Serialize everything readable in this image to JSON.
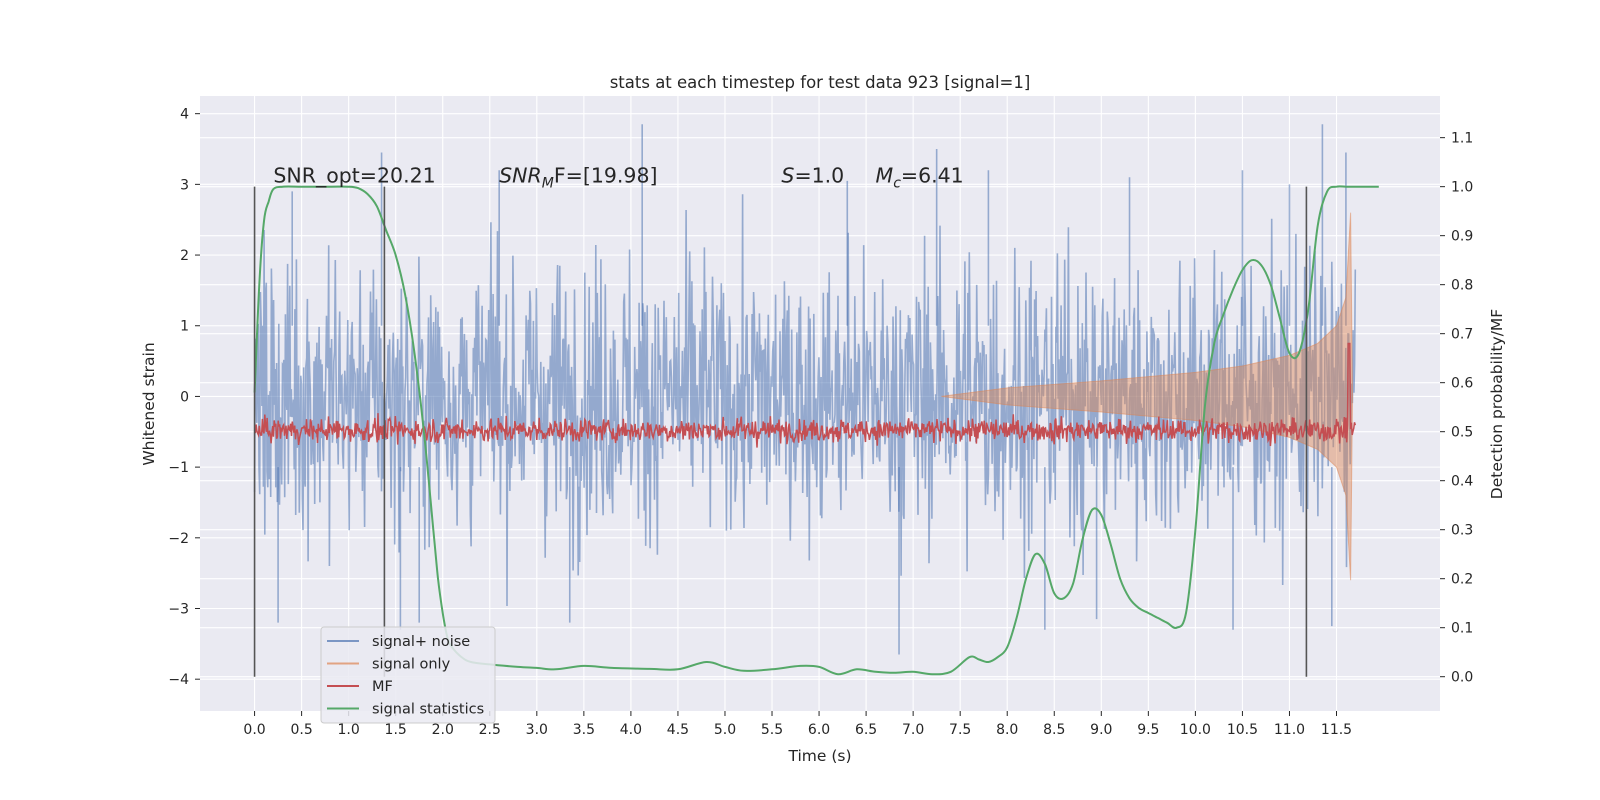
{
  "chart_data": {
    "type": "line",
    "title": "stats at each timestep for test data 923 [signal=1]",
    "xlabel": "Time (s)",
    "ylabel": "Whitened strain",
    "y2label": "Detection probability/MF",
    "xlim": [
      -0.58,
      12.6
    ],
    "ylim": [
      -4.45,
      4.25
    ],
    "y2lim": [
      -0.07,
      1.185
    ],
    "x_ticks": [
      "0.0",
      "0.5",
      "1.0",
      "1.5",
      "2.0",
      "2.5",
      "3.0",
      "3.5",
      "4.0",
      "4.5",
      "5.0",
      "5.5",
      "6.0",
      "6.5",
      "7.0",
      "7.5",
      "8.0",
      "8.5",
      "9.0",
      "9.5",
      "10.0",
      "10.5",
      "11.0",
      "11.5"
    ],
    "y_ticks": [
      "4",
      "3",
      "2",
      "1",
      "0",
      "−1",
      "−2",
      "−3",
      "−4"
    ],
    "y2_ticks": [
      "1.1",
      "1.0",
      "0.9",
      "0.8",
      "0.7",
      "0.6",
      "0.5",
      "0.4",
      "0.3",
      "0.2",
      "0.1",
      "0.0"
    ],
    "grid": true,
    "legend_position": "lower-left",
    "annotations": [
      {
        "prefix": "SNR_opt=20.21",
        "sub": "",
        "suffix": ""
      },
      {
        "prefix": "SNR",
        "sub": "M",
        "suffix": "F=[19.98]"
      },
      {
        "prefix": "S",
        "sub": "",
        "suffix": "=1.0"
      },
      {
        "prefix": "M",
        "sub": "c",
        "suffix": "=6.41"
      }
    ],
    "vertical_lines_x": [
      0.0,
      1.38,
      11.18
    ],
    "series": [
      {
        "name": "signal+ noise",
        "color": "#4c72b0",
        "axis": "left",
        "x_range": [
          0.0,
          11.7
        ],
        "envelope": "dense noise, roughly ±1.7 typical with spikes up to ±3.8",
        "peaks_high": [
          [
            0.4,
            2.9
          ],
          [
            1.35,
            3.45
          ],
          [
            2.6,
            3.2
          ],
          [
            4.12,
            3.85
          ],
          [
            6.3,
            3.05
          ],
          [
            7.25,
            3.5
          ],
          [
            7.8,
            3.2
          ],
          [
            9.3,
            3.1
          ],
          [
            10.5,
            3.2
          ],
          [
            11.0,
            3.0
          ],
          [
            11.35,
            3.85
          ],
          [
            11.6,
            3.45
          ]
        ],
        "peaks_low": [
          [
            0.25,
            -3.2
          ],
          [
            1.55,
            -3.3
          ],
          [
            1.75,
            -3.2
          ],
          [
            3.35,
            -3.2
          ],
          [
            6.85,
            -3.65
          ],
          [
            8.4,
            -3.3
          ],
          [
            8.95,
            -3.15
          ],
          [
            10.4,
            -3.3
          ],
          [
            11.45,
            -3.25
          ]
        ]
      },
      {
        "name": "signal only",
        "color": "#dd8452",
        "axis": "left",
        "description": "chirp envelope growing from near 0 at t≈7.3 to about ±2.6 at t≈11.65, then ending",
        "envelope_x": [
          7.3,
          8.0,
          9.0,
          10.0,
          10.5,
          11.0,
          11.3,
          11.5,
          11.6,
          11.65,
          11.67
        ],
        "envelope_y": [
          0.0,
          0.12,
          0.22,
          0.34,
          0.43,
          0.58,
          0.75,
          1.0,
          1.4,
          2.6,
          0.0
        ]
      },
      {
        "name": "MF",
        "color": "#c44e52",
        "axis": "right",
        "level": 0.503,
        "noise": 0.012,
        "spike": {
          "x": 11.63,
          "y": 0.68
        }
      },
      {
        "name": "signal statistics",
        "color": "#55a868",
        "axis": "right",
        "x": [
          0.0,
          0.05,
          0.1,
          0.15,
          0.2,
          0.3,
          0.5,
          0.8,
          1.0,
          1.1,
          1.2,
          1.3,
          1.4,
          1.5,
          1.6,
          1.7,
          1.8,
          1.9,
          1.95,
          2.0,
          2.05,
          2.1,
          2.2,
          2.3,
          2.5,
          2.8,
          3.0,
          3.2,
          3.5,
          3.8,
          4.2,
          4.5,
          4.8,
          5.0,
          5.2,
          5.5,
          5.8,
          6.0,
          6.2,
          6.4,
          6.6,
          6.8,
          7.0,
          7.2,
          7.4,
          7.6,
          7.7,
          7.8,
          7.9,
          8.0,
          8.1,
          8.2,
          8.3,
          8.4,
          8.5,
          8.6,
          8.7,
          8.8,
          8.9,
          9.0,
          9.1,
          9.2,
          9.3,
          9.4,
          9.5,
          9.6,
          9.7,
          9.8,
          9.9,
          10.0,
          10.1,
          10.2,
          10.3,
          10.4,
          10.5,
          10.6,
          10.7,
          10.8,
          10.9,
          11.0,
          11.1,
          11.2,
          11.3,
          11.4,
          11.5,
          11.6,
          11.7,
          11.9,
          11.95
        ],
        "y": [
          0.58,
          0.8,
          0.93,
          0.97,
          0.995,
          1.0,
          1.0,
          1.0,
          1.0,
          0.997,
          0.985,
          0.96,
          0.91,
          0.86,
          0.78,
          0.66,
          0.5,
          0.3,
          0.2,
          0.13,
          0.08,
          0.06,
          0.04,
          0.03,
          0.025,
          0.02,
          0.018,
          0.015,
          0.022,
          0.018,
          0.016,
          0.015,
          0.03,
          0.02,
          0.012,
          0.015,
          0.022,
          0.02,
          0.005,
          0.015,
          0.01,
          0.008,
          0.01,
          0.005,
          0.01,
          0.04,
          0.035,
          0.03,
          0.04,
          0.06,
          0.12,
          0.2,
          0.25,
          0.23,
          0.17,
          0.16,
          0.19,
          0.28,
          0.34,
          0.33,
          0.27,
          0.2,
          0.16,
          0.14,
          0.13,
          0.12,
          0.11,
          0.1,
          0.13,
          0.3,
          0.55,
          0.68,
          0.74,
          0.79,
          0.83,
          0.85,
          0.84,
          0.8,
          0.73,
          0.66,
          0.66,
          0.75,
          0.92,
          0.99,
          1.0,
          1.0,
          1.0,
          1.0,
          1.0
        ]
      }
    ]
  }
}
